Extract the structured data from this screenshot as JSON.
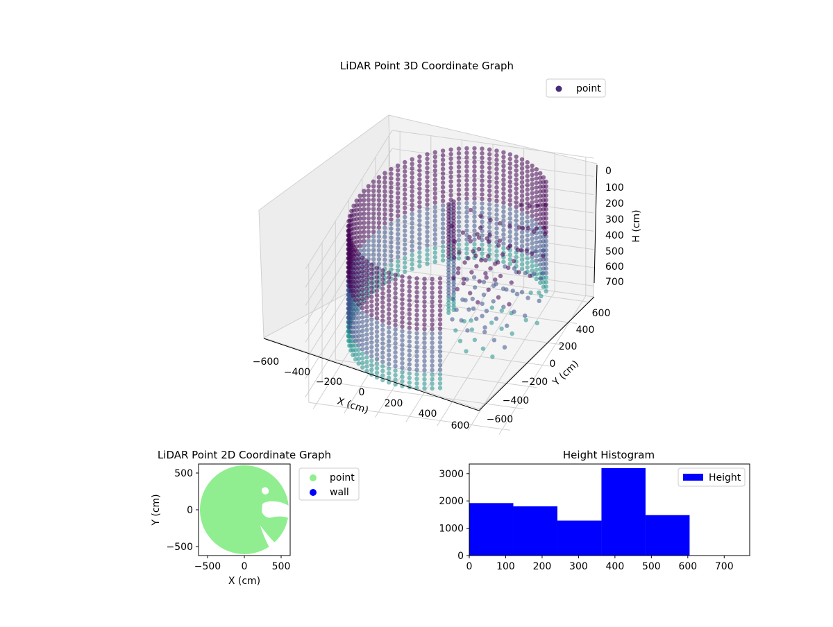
{
  "chart_data": [
    {
      "type": "scatter3d",
      "title": "LiDAR Point 3D Coordinate Graph",
      "xlabel": "X (cm)",
      "ylabel": "Y (cm)",
      "zlabel": "H (cm)",
      "xticks": [
        "−600",
        "−400",
        "−200",
        "0",
        "200",
        "400",
        "600"
      ],
      "yticks": [
        "−600",
        "−400",
        "−200",
        "0",
        "200",
        "400",
        "600"
      ],
      "zticks": [
        "0",
        "100",
        "200",
        "300",
        "400",
        "500",
        "600",
        "700"
      ],
      "xlim": [
        -650,
        650
      ],
      "ylim": [
        -650,
        650
      ],
      "zlim": [
        760,
        0
      ],
      "legend": [
        "point"
      ],
      "legend_position": "top-right",
      "grid": true,
      "colormap": [
        "#440154",
        "#3b528b",
        "#21918c"
      ],
      "ring_radius_cm": 600,
      "height_range_cm": [
        0,
        600
      ],
      "series": [
        {
          "name": "point",
          "values": []
        }
      ]
    },
    {
      "type": "scatter",
      "title": "LiDAR Point 2D Coordinate Graph",
      "xlabel": "X (cm)",
      "ylabel": "Y (cm)",
      "xticks": [
        "−500",
        "0",
        "500"
      ],
      "yticks": [
        "500",
        "0",
        "−500"
      ],
      "xlim": [
        -620,
        620
      ],
      "ylim": [
        -620,
        620
      ],
      "legend": [
        "point",
        "wall"
      ],
      "legend_position": "outside-right",
      "colors": {
        "point": "#90ee90",
        "wall": "#0000ff"
      },
      "series": [
        {
          "name": "point",
          "values": []
        },
        {
          "name": "wall",
          "values": []
        }
      ]
    },
    {
      "type": "bar",
      "title": "Height Histogram",
      "xticks": [
        "0",
        "100",
        "200",
        "300",
        "400",
        "500",
        "600",
        "700"
      ],
      "yticks": [
        "0",
        "1000",
        "2000",
        "3000"
      ],
      "xlim": [
        0,
        770
      ],
      "ylim": [
        0,
        3350
      ],
      "legend": [
        "Height"
      ],
      "legend_position": "top-right",
      "color": "#0000ff",
      "bins": [
        {
          "x0": 0,
          "x1": 121,
          "value": 1920
        },
        {
          "x0": 121,
          "x1": 242,
          "value": 1800
        },
        {
          "x0": 242,
          "x1": 363,
          "value": 1280
        },
        {
          "x0": 363,
          "x1": 484,
          "value": 3200
        },
        {
          "x0": 484,
          "x1": 605,
          "value": 1480
        }
      ]
    }
  ]
}
